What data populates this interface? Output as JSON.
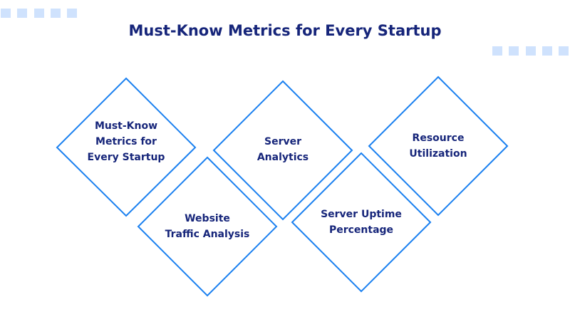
{
  "title": "Must-Know Metrics for Every Startup",
  "colors": {
    "border": "#1a80f0",
    "text": "#16257a",
    "decor": "#cfe2fd"
  },
  "items": [
    {
      "label": "Must-Know\nMetrics for\nEvery Startup"
    },
    {
      "label": "Website\nTraffic Analysis"
    },
    {
      "label": "Server\nAnalytics"
    },
    {
      "label": "Server Uptime\nPercentage"
    },
    {
      "label": "Resource\nUtilization"
    }
  ]
}
